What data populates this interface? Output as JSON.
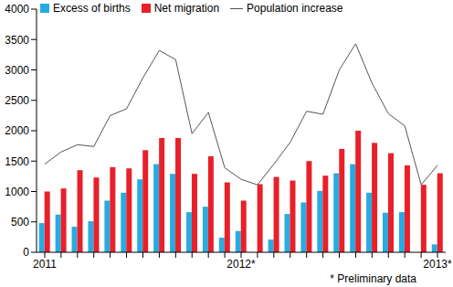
{
  "chart_data": {
    "type": "bar",
    "categories": [
      "2011",
      null,
      null,
      null,
      null,
      null,
      null,
      null,
      null,
      null,
      null,
      null,
      "2012*",
      null,
      null,
      null,
      null,
      null,
      null,
      null,
      null,
      null,
      null,
      null,
      "2013*"
    ],
    "series": [
      {
        "name": "Excess of births",
        "type": "bar",
        "color": "#29abe2",
        "values": [
          480,
          620,
          420,
          510,
          850,
          980,
          1200,
          1450,
          1290,
          660,
          750,
          240,
          350,
          0,
          210,
          630,
          820,
          1010,
          1300,
          1450,
          980,
          650,
          660,
          0,
          130
        ]
      },
      {
        "name": "Net migration",
        "type": "bar",
        "color": "#e8202a",
        "values": [
          1000,
          1050,
          1350,
          1230,
          1400,
          1380,
          1680,
          1880,
          1880,
          1290,
          1580,
          1150,
          850,
          1120,
          1240,
          1180,
          1500,
          1260,
          1700,
          2000,
          1800,
          1630,
          1430,
          1110,
          1300
        ]
      },
      {
        "name": "Population increase",
        "type": "line",
        "color": "#555555",
        "values": [
          1450,
          1650,
          1770,
          1740,
          2250,
          2360,
          2870,
          3320,
          3170,
          1950,
          2300,
          1390,
          1200,
          1110,
          1450,
          1810,
          2320,
          2270,
          3000,
          3430,
          2780,
          2280,
          2080,
          1110,
          1430
        ]
      }
    ],
    "ylim": [
      0,
      4000
    ],
    "yticks": [
      0,
      500,
      1000,
      1500,
      2000,
      2500,
      3000,
      3500,
      4000
    ],
    "grid": false,
    "legend": "upper left",
    "annotations": [
      "* Preliminary data"
    ]
  }
}
